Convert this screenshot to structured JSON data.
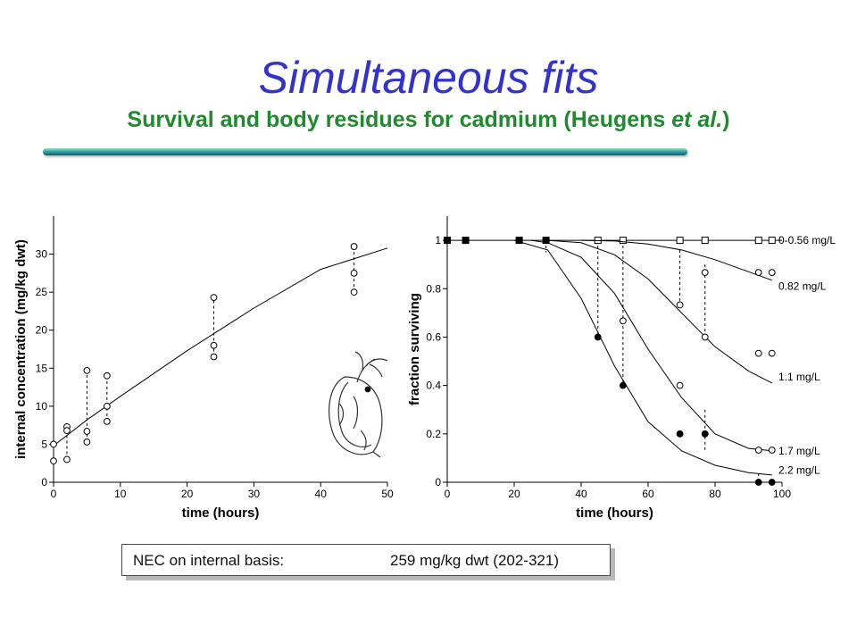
{
  "title": "Simultaneous fits",
  "subtitle_main": "Survival and body residues for cadmium (Heugens ",
  "subtitle_italic": "et al.",
  "subtitle_end": ")",
  "note": {
    "label": "NEC on internal basis:",
    "value": "259 mg/kg dwt (202-321)"
  },
  "icons": {
    "illustration": "daphnia-icon"
  },
  "colors": {
    "title": "#3333cc",
    "subtitle": "#1f8a2e"
  },
  "chart_data": [
    {
      "type": "scatter",
      "xlabel": "time (hours)",
      "ylabel": "internal concentration (mg/kg dwt)",
      "xlim": [
        0,
        50
      ],
      "ylim": [
        0,
        35
      ],
      "xticks": [
        0,
        10,
        20,
        30,
        40,
        50
      ],
      "yticks": [
        0,
        5,
        10,
        15,
        20,
        25,
        30
      ],
      "grid": false,
      "fit_line": {
        "x": [
          0,
          5,
          10,
          20,
          30,
          40,
          50
        ],
        "y": [
          4.8,
          8.2,
          11.3,
          17.3,
          22.9,
          28.0,
          30.8
        ]
      },
      "points": [
        {
          "x": 0,
          "y": 5
        },
        {
          "x": 0,
          "y": 2.8
        },
        {
          "x": 2,
          "y": 7.3
        },
        {
          "x": 2,
          "y": 6.8
        },
        {
          "x": 2,
          "y": 3
        },
        {
          "x": 5,
          "y": 14.7
        },
        {
          "x": 5,
          "y": 6.7
        },
        {
          "x": 5,
          "y": 5.3
        },
        {
          "x": 8,
          "y": 14
        },
        {
          "x": 8,
          "y": 10
        },
        {
          "x": 8,
          "y": 8
        },
        {
          "x": 24,
          "y": 24.3
        },
        {
          "x": 24,
          "y": 18
        },
        {
          "x": 24,
          "y": 16.5
        },
        {
          "x": 45,
          "y": 31
        },
        {
          "x": 45,
          "y": 27.5
        },
        {
          "x": 45,
          "y": 25
        }
      ],
      "residual_lines": [
        {
          "x": 0,
          "y_from": 2.8,
          "y_to": 5
        },
        {
          "x": 2,
          "y_from": 3,
          "y_to": 7.3
        },
        {
          "x": 5,
          "y_from": 5.3,
          "y_to": 14.7
        },
        {
          "x": 8,
          "y_from": 8,
          "y_to": 14
        },
        {
          "x": 24,
          "y_from": 16.5,
          "y_to": 24.3
        },
        {
          "x": 45,
          "y_from": 25,
          "y_to": 31
        }
      ]
    },
    {
      "type": "line",
      "xlabel": "time (hours)",
      "ylabel": "fraction surviving",
      "xlim": [
        0,
        100
      ],
      "ylim": [
        0,
        1.1
      ],
      "xticks": [
        0,
        20,
        40,
        60,
        80,
        100
      ],
      "yticks": [
        0,
        0.2,
        0.4,
        0.6,
        0.8,
        1
      ],
      "ytick_labels": [
        "0",
        "0.2",
        "0.4",
        "0.6",
        "0.8",
        "1"
      ],
      "grid": false,
      "series": [
        {
          "name": "0-0.56 mg/L",
          "curve": {
            "x": [
              0,
              100
            ],
            "y": [
              1,
              1
            ]
          },
          "points": [
            {
              "x": 0,
              "y": 1,
              "marker": "square-filled"
            },
            {
              "x": 5.5,
              "y": 1,
              "marker": "square-filled"
            },
            {
              "x": 21.5,
              "y": 1,
              "marker": "square-filled"
            },
            {
              "x": 29.5,
              "y": 1,
              "marker": "square-filled"
            },
            {
              "x": 45,
              "y": 1,
              "marker": "square-open"
            },
            {
              "x": 52.5,
              "y": 1,
              "marker": "square-open"
            },
            {
              "x": 69.5,
              "y": 1,
              "marker": "square-open"
            },
            {
              "x": 77,
              "y": 1,
              "marker": "square-open"
            },
            {
              "x": 93,
              "y": 1,
              "marker": "square-open"
            },
            {
              "x": 97,
              "y": 1,
              "marker": "square-open"
            }
          ]
        },
        {
          "name": "0.82 mg/L",
          "curve": {
            "x": [
              40,
              50,
              60,
              70,
              80,
              90,
              97
            ],
            "y": [
              1,
              0.997,
              0.985,
              0.96,
              0.92,
              0.87,
              0.835
            ]
          },
          "points": [
            {
              "x": 77,
              "y": 0.867,
              "marker": "circle-open"
            },
            {
              "x": 93,
              "y": 0.867,
              "marker": "circle-open"
            },
            {
              "x": 97,
              "y": 0.867,
              "marker": "circle-open"
            }
          ]
        },
        {
          "name": "1.1 mg/L",
          "curve": {
            "x": [
              30,
              40,
              50,
              60,
              70,
              80,
              90,
              97
            ],
            "y": [
              1,
              0.99,
              0.94,
              0.84,
              0.7,
              0.56,
              0.46,
              0.41
            ]
          },
          "points": [
            {
              "x": 52.5,
              "y": 0.667,
              "marker": "circle-open"
            },
            {
              "x": 69.5,
              "y": 0.733,
              "marker": "circle-open"
            },
            {
              "x": 77,
              "y": 0.6,
              "marker": "circle-open"
            },
            {
              "x": 93,
              "y": 0.533,
              "marker": "circle-open"
            },
            {
              "x": 97,
              "y": 0.533,
              "marker": "circle-open"
            }
          ]
        },
        {
          "name": "1.7 mg/L",
          "curve": {
            "x": [
              25,
              30,
              40,
              50,
              60,
              70,
              80,
              90,
              97
            ],
            "y": [
              1,
              0.99,
              0.93,
              0.78,
              0.55,
              0.35,
              0.2,
              0.14,
              0.13
            ]
          },
          "points": [
            {
              "x": 69.5,
              "y": 0.4,
              "marker": "circle-open"
            },
            {
              "x": 93,
              "y": 0.133,
              "marker": "circle-open"
            },
            {
              "x": 97,
              "y": 0.133,
              "marker": "circle-open"
            }
          ]
        },
        {
          "name": "2.2 mg/L",
          "curve": {
            "x": [
              20,
              30,
              40,
              50,
              60,
              70,
              80,
              90,
              97
            ],
            "y": [
              1,
              0.96,
              0.76,
              0.48,
              0.25,
              0.13,
              0.07,
              0.04,
              0.03
            ]
          },
          "points": [
            {
              "x": 45,
              "y": 0.6,
              "marker": "circle-filled"
            },
            {
              "x": 52.5,
              "y": 0.4,
              "marker": "circle-filled"
            },
            {
              "x": 69.5,
              "y": 0.2,
              "marker": "circle-filled"
            },
            {
              "x": 77,
              "y": 0.2,
              "marker": "circle-filled"
            },
            {
              "x": 93,
              "y": 0,
              "marker": "circle-filled"
            },
            {
              "x": 97,
              "y": 0,
              "marker": "circle-filled"
            }
          ]
        }
      ],
      "residual_lines": [
        {
          "x": 29.5,
          "y_from": 1,
          "y_to": 0.95
        },
        {
          "x": 45,
          "y_from": 1,
          "y_to": 0.6
        },
        {
          "x": 52.5,
          "y_from": 1,
          "y_to": 0.4
        },
        {
          "x": 69.5,
          "y_from": 0.96,
          "y_to": 0.733
        },
        {
          "x": 77,
          "y_from": 0.9,
          "y_to": 0.6
        },
        {
          "x": 77,
          "y_from": 0.3,
          "y_to": 0.13
        },
        {
          "x": 93,
          "y_from": 0.037,
          "y_to": 0
        }
      ]
    }
  ]
}
